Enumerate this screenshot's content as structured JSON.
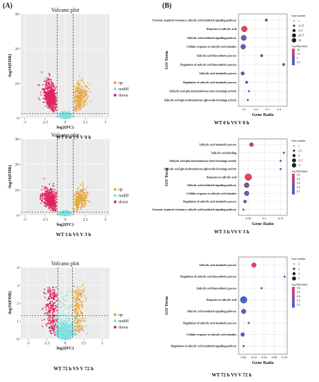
{
  "panel_labels": {
    "a": "(A)",
    "b": "(B)"
  },
  "chart_data": [
    {
      "type": "scatter",
      "title": "Volcano plot",
      "xlabel": "log2(FC)",
      "ylabel": "-log10(FDR)",
      "caption": "WT 0 h VS V 0 h",
      "xlim": [
        -5.5,
        5.5
      ],
      "ylim": [
        0,
        30
      ],
      "xticks": [
        "-5",
        "-2.5",
        "0",
        "2.5",
        "5"
      ],
      "yticks": [
        "0",
        "10",
        "20",
        "30"
      ],
      "legend": [
        "up",
        "nodiff",
        "down"
      ],
      "legend_position": "right",
      "colors": {
        "up": "#e6a73c",
        "nodiff": "#7fe0e0",
        "down": "#e0245e"
      },
      "thresholds": {
        "log2fc": [
          -1,
          1
        ],
        "fdr_line": 1.3
      }
    },
    {
      "type": "scatter",
      "title": "Volcano plot",
      "xlabel": "log2(FC)",
      "ylabel": "-log10(FDR)",
      "caption": "WT 3 h VS V 3 h",
      "xlim": [
        -5.5,
        5.5
      ],
      "ylim": [
        0,
        30
      ],
      "xticks": [
        "-5",
        "-2.5",
        "0",
        "2.5",
        "5"
      ],
      "yticks": [
        "0",
        "10",
        "20",
        "30"
      ],
      "legend": [
        "up",
        "nodiff",
        "down"
      ],
      "legend_position": "right",
      "colors": {
        "up": "#e6a73c",
        "nodiff": "#7fe0e0",
        "down": "#e0245e"
      },
      "thresholds": {
        "log2fc": [
          -1,
          1
        ],
        "fdr_line": 1.3
      }
    },
    {
      "type": "scatter",
      "title": "Volcano plot",
      "xlabel": "log2(FC)",
      "ylabel": "-log10(FDR)",
      "caption": "WT 72 h VS V 72 h",
      "xlim": [
        -6,
        6
      ],
      "ylim": [
        0,
        4
      ],
      "xticks": [
        "-5",
        "-2.5",
        "0",
        "2.5",
        "5"
      ],
      "yticks": [
        "0",
        "1",
        "2",
        "3",
        "4"
      ],
      "legend": [
        "up",
        "nodiff",
        "down"
      ],
      "legend_position": "right",
      "colors": {
        "up": "#e6a73c",
        "nodiff": "#7fe0e0",
        "down": "#e0245e"
      },
      "thresholds": {
        "log2fc": [
          -1,
          1
        ],
        "fdr_line": 1.3
      }
    },
    {
      "type": "scatter",
      "ylabel": "GO Term",
      "xlabel": "Gene Ratio",
      "caption": "WT 0 h VS V 0 h",
      "xlim": [
        0.05,
        0.47
      ],
      "xticks": [
        {
          "v": 0.1,
          "t": "0.1"
        },
        {
          "v": 0.2,
          "t": "0.2"
        },
        {
          "v": 0.3,
          "t": "0.3"
        },
        {
          "v": 0.4,
          "t": "0.4"
        }
      ],
      "terms": [
        {
          "label": "Systemic acquired resistance, salicylic acid mediated signaling pathway",
          "ratio": 0.29,
          "count": 2,
          "q": 7
        },
        {
          "label": "Response to salicylic acid",
          "ratio": 0.1,
          "count": 25,
          "q": 10
        },
        {
          "label": "Salicylic acid mediated signaling pathway",
          "ratio": 0.095,
          "count": 20,
          "q": 5
        },
        {
          "label": "Cellular response to salicylic acid stimulus",
          "ratio": 0.09,
          "count": 16,
          "q": 4
        },
        {
          "label": "Salicylic acid biosynthetic process",
          "ratio": 0.25,
          "count": 2,
          "q": 2.5
        },
        {
          "label": "Regulation of salicylic acid biosynthetic process",
          "ratio": 0.44,
          "count": 2,
          "q": 7.5
        },
        {
          "label": "Salicylic acid metabolic process",
          "ratio": 0.085,
          "count": 5,
          "q": 3
        },
        {
          "label": "Regulation of salicylic acid metabolic process",
          "ratio": 0.12,
          "count": 2,
          "q": 2.5
        },
        {
          "label": "Salicylic acid glucosyltransferase (ester-forming) activity",
          "ratio": 0.14,
          "count": 1,
          "q": 2.5
        },
        {
          "label": "Salicylic acid glucosyltransferase (glucoside-forming) activity",
          "ratio": 0.13,
          "count": 1,
          "q": 2.5
        }
      ],
      "size_legend_title": "Gene number",
      "size_legend": [
        "1",
        "10.25",
        "19.5",
        "28.75",
        "38"
      ],
      "size_domain": [
        1,
        38
      ],
      "color_legend_title": "-log10(Qvalue)",
      "color_legend": [
        "10",
        "7.5",
        "5",
        "2.5"
      ],
      "color_domain": [
        2.5,
        10
      ]
    },
    {
      "type": "scatter",
      "ylabel": "GO Term",
      "xlabel": "Gene Ratio",
      "caption": "WT 3 h VS V 3 h",
      "xlim": [
        0.02,
        0.17
      ],
      "xticks": [
        {
          "v": 0.05,
          "t": "0.05"
        },
        {
          "v": 0.1,
          "t": "0.1"
        },
        {
          "v": 0.15,
          "t": "0.15"
        }
      ],
      "terms": [
        {
          "label": "Salicylic acid metabolic process",
          "ratio": 0.06,
          "count": 4,
          "q": 0.45
        },
        {
          "label": "Salicylic acid binding",
          "ratio": 0.16,
          "count": 1,
          "q": 0.2
        },
        {
          "label": "Salicylic acid glucosyltransferase (ester-forming) activity",
          "ratio": 0.15,
          "count": 1,
          "q": 0.15
        },
        {
          "label": "Salicylic acid glucosyltransferase (glucoside-forming) activity",
          "ratio": 0.15,
          "count": 1,
          "q": 0.15
        },
        {
          "label": "Response to salicylic acid",
          "ratio": 0.05,
          "count": 15,
          "q": 0.55
        },
        {
          "label": "Salicylic acid mediated signaling pathway",
          "ratio": 0.045,
          "count": 7,
          "q": 0.3
        },
        {
          "label": "Cellular response to salicylic acid stimulus",
          "ratio": 0.045,
          "count": 6,
          "q": 0.25
        },
        {
          "label": "Regulation of salicylic acid metabolic process",
          "ratio": 0.04,
          "count": 2,
          "q": 0.15
        },
        {
          "label": "Systemic acquired resistance, salicylic acid mediated signaling pathway",
          "ratio": 0.035,
          "count": 1,
          "q": 0.1
        }
      ],
      "size_legend_title": "Gene number",
      "size_legend": [
        "1",
        "4.5",
        "8",
        "11.5",
        "15"
      ],
      "size_domain": [
        1,
        15
      ],
      "color_legend_title": "-log10(Qvalue)",
      "color_legend": [
        "0.5",
        "0.4",
        "0.3",
        "0.2",
        "0.1"
      ],
      "color_domain": [
        0.1,
        0.55
      ]
    },
    {
      "type": "scatter",
      "ylabel": "GO Term",
      "xlabel": "Gene Ratio",
      "caption": "WT 72 h VS V 72 h",
      "xlim": [
        0.01,
        0.105
      ],
      "xticks": [
        {
          "v": 0.02,
          "t": "0.02"
        },
        {
          "v": 0.04,
          "t": "0.04"
        },
        {
          "v": 0.06,
          "t": "0.06"
        },
        {
          "v": 0.08,
          "t": "0.08"
        },
        {
          "v": 0.1,
          "t": "0.10"
        }
      ],
      "terms": [
        {
          "label": "Salicylic acid metabolic process",
          "ratio": 0.04,
          "count": 3,
          "q": 0.62
        },
        {
          "label": "Regulation of salicylic acid biosynthetic process",
          "ratio": 0.1,
          "count": 1,
          "q": 0.2
        },
        {
          "label": "Salicylic acid biosynthetic process",
          "ratio": 0.055,
          "count": 1,
          "q": 0.2
        },
        {
          "label": "Response to salicylic acid",
          "ratio": 0.02,
          "count": 7,
          "q": 0.15
        },
        {
          "label": "Salicylic acid mediated signaling pathway",
          "ratio": 0.02,
          "count": 3,
          "q": 0.3
        },
        {
          "label": "Regulation of salicylic acid metabolic process",
          "ratio": 0.03,
          "count": 1,
          "q": 0.25
        },
        {
          "label": "Cellular response to salicylic acid stimulus",
          "ratio": 0.018,
          "count": 2,
          "q": 0.2
        },
        {
          "label": "Regulation of salicylic acid mediated signaling pathway",
          "ratio": 0.02,
          "count": 1,
          "q": 0.15
        }
      ],
      "size_legend_title": "Gene number",
      "size_legend": [
        "2",
        "3",
        "4",
        "5"
      ],
      "size_domain": [
        1,
        7
      ],
      "color_legend_title": "-log10(Qvalue)",
      "color_legend": [
        "0.6",
        "0.5",
        "0.4",
        "0.3",
        "0.2"
      ],
      "color_domain": [
        0.15,
        0.62
      ]
    }
  ]
}
